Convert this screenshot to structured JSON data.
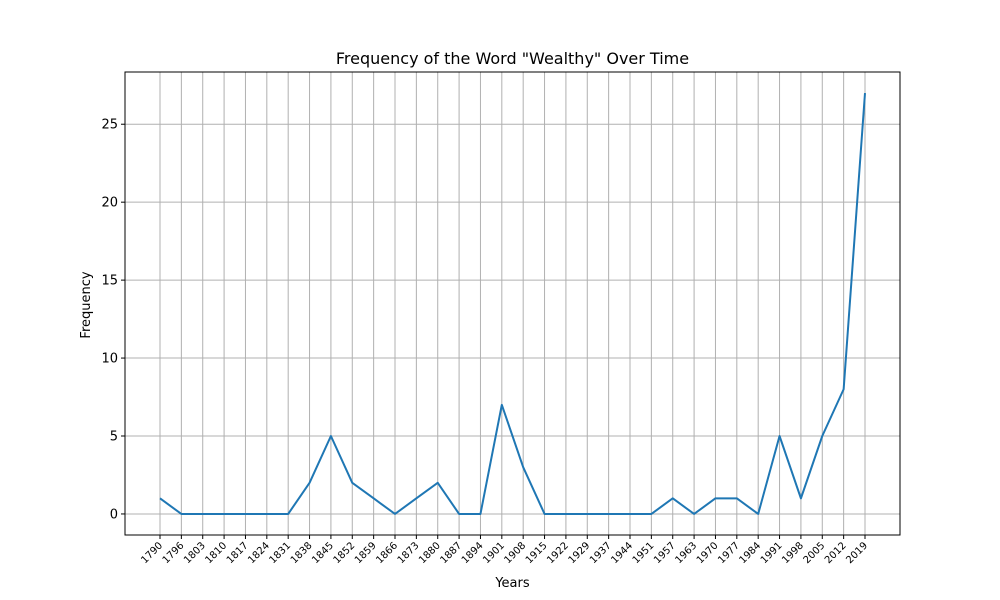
{
  "chart_data": {
    "type": "line",
    "title": "Frequency of the Word \"Wealthy\" Over Time",
    "xlabel": "Years",
    "ylabel": "Frequency",
    "ylim": [
      -1.35,
      28.35
    ],
    "yticks": [
      0,
      5,
      10,
      15,
      20,
      25
    ],
    "grid": true,
    "line_color": "#1f77b4",
    "grid_color": "#b0b0b0",
    "categories": [
      "1790",
      "1796",
      "1803",
      "1810",
      "1817",
      "1824",
      "1831",
      "1838",
      "1845",
      "1852",
      "1859",
      "1866",
      "1873",
      "1880",
      "1887",
      "1894",
      "1901",
      "1908",
      "1915",
      "1922",
      "1929",
      "1937",
      "1944",
      "1951",
      "1957",
      "1963",
      "1970",
      "1977",
      "1984",
      "1991",
      "1998",
      "2005",
      "2012",
      "2019"
    ],
    "series": [
      {
        "values": [
          1,
          0,
          0,
          0,
          0,
          0,
          0,
          2,
          5,
          2,
          1,
          0,
          1,
          2,
          0,
          0,
          7,
          3,
          0,
          0,
          0,
          0,
          0,
          0,
          1,
          0,
          1,
          1,
          0,
          5,
          1,
          5,
          8,
          27
        ]
      }
    ]
  }
}
